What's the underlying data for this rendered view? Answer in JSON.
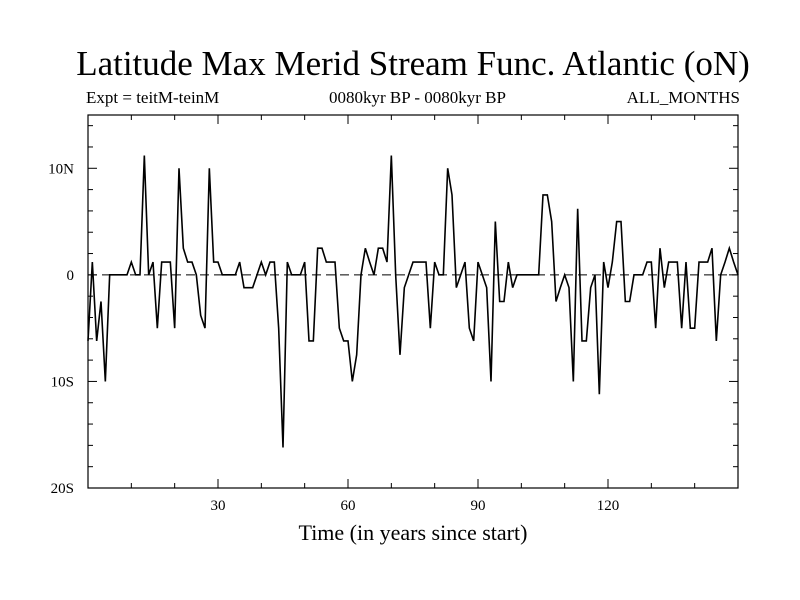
{
  "chart_data": {
    "type": "line",
    "title": "Latitude Max Merid Stream Func. Atlantic (oN)",
    "subtitle_left": "Expt = teitM-teinM",
    "subtitle_center": "0080kyr BP - 0080kyr BP",
    "subtitle_right": "ALL_MONTHS",
    "xlabel": "Time (in years since start)",
    "ylabel": "",
    "xlim": [
      0,
      150
    ],
    "ylim": [
      -20,
      15
    ],
    "x_ticks": [
      30,
      60,
      90,
      120
    ],
    "x_tick_labels": [
      "30",
      "60",
      "90",
      "120"
    ],
    "x_minor_step": 10,
    "y_ticks": [
      10,
      0,
      -10,
      -20
    ],
    "y_tick_labels": [
      "10N",
      "0",
      "10S",
      "20S"
    ],
    "y_minor_step": 2,
    "reference_line": {
      "y": 0,
      "style": "dashed"
    },
    "grid": false,
    "legend": "none",
    "line_color": "#000000",
    "x_start": 0,
    "x_step": 1,
    "series": [
      {
        "values": [
          -6.2,
          1.2,
          -6.2,
          -2.5,
          -10,
          0,
          0,
          0,
          0,
          0,
          1.2,
          0,
          0,
          11.2,
          0,
          1.2,
          -5,
          1.2,
          1.2,
          1.2,
          -5,
          10,
          2.5,
          1.2,
          1.2,
          0,
          -3.8,
          -5,
          10,
          1.2,
          1.2,
          0,
          0,
          0,
          0,
          1.2,
          -1.2,
          -1.2,
          -1.2,
          0,
          1.2,
          0,
          1.2,
          1.2,
          -5,
          -16.2,
          1.2,
          0,
          0,
          0,
          1.2,
          -6.2,
          -6.2,
          2.5,
          2.5,
          1.2,
          1.2,
          1.2,
          -5,
          -6.2,
          -6.2,
          -10,
          -7.5,
          0,
          2.5,
          1.2,
          0,
          2.5,
          2.5,
          1.2,
          11.2,
          0,
          -7.5,
          -1.2,
          0,
          1.2,
          1.2,
          1.2,
          1.2,
          -5,
          1.2,
          0,
          0,
          10,
          7.5,
          -1.2,
          0,
          1.2,
          -5,
          -6.2,
          1.2,
          0,
          -1.2,
          -10,
          5,
          -2.5,
          -2.5,
          1.2,
          -1.2,
          0,
          0,
          0,
          0,
          0,
          0,
          7.5,
          7.5,
          5,
          -2.5,
          -1.2,
          0,
          -1.2,
          -10,
          6.2,
          -6.2,
          -6.2,
          -1.2,
          0,
          -11.2,
          1.2,
          -1.2,
          1.2,
          5,
          5,
          -2.5,
          -2.5,
          0,
          0,
          0,
          1.2,
          1.2,
          -5,
          2.5,
          -1.2,
          1.2,
          1.2,
          1.2,
          -5,
          1.2,
          -5,
          -5,
          1.2,
          1.2,
          1.2,
          2.5,
          -6.2,
          0,
          1.2,
          2.5,
          1.2,
          0
        ]
      }
    ]
  }
}
